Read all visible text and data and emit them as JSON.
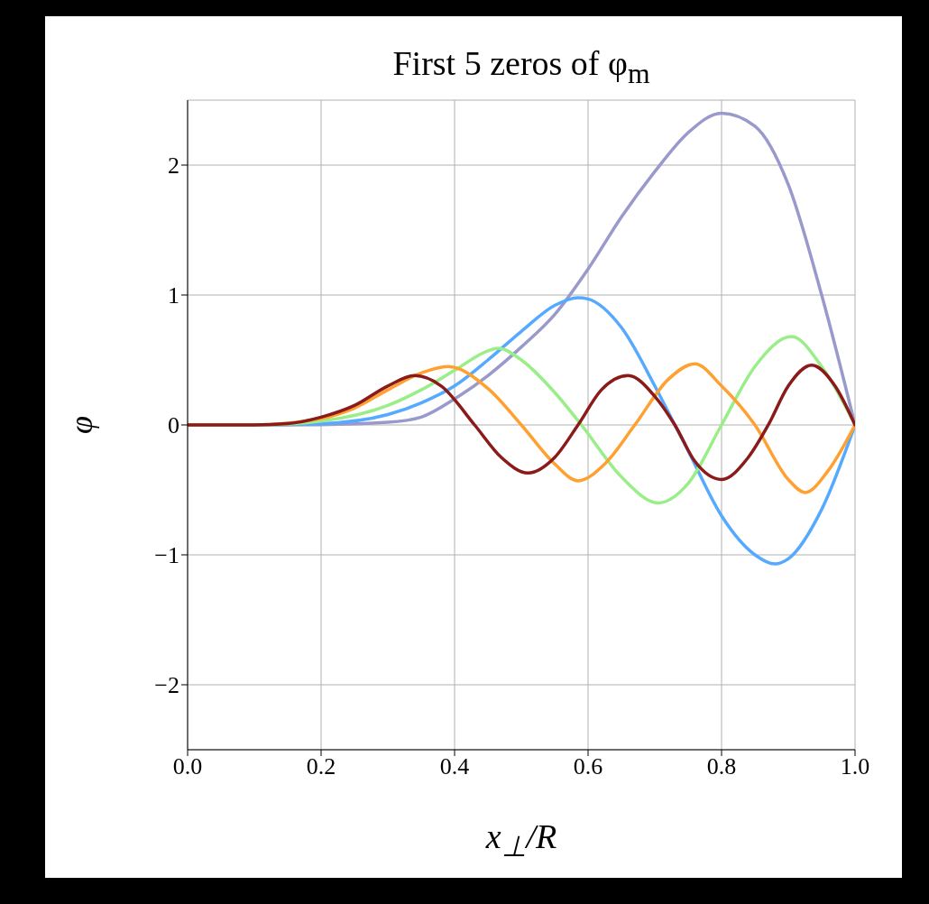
{
  "chart_data": {
    "type": "line",
    "title": "First 5 zeros of φ$_{m}$",
    "xlabel": "x$_{⊥}$/R",
    "ylabel": "φ",
    "xlim": [
      0,
      1
    ],
    "xticks": [
      {
        "value": 0,
        "label": "0.0"
      },
      {
        "value": 0.2,
        "label": "0.2"
      },
      {
        "value": 0.4,
        "label": "0.4"
      },
      {
        "value": 0.6,
        "label": "0.6"
      },
      {
        "value": 0.8,
        "label": "0.8"
      },
      {
        "value": 1,
        "label": "1.0"
      }
    ],
    "ylim": [
      -2.5,
      2.5
    ],
    "yticks": [
      {
        "value": -2,
        "label": "−2"
      },
      {
        "value": -1,
        "label": "−1"
      },
      0,
      1,
      2
    ],
    "grid": true,
    "legend": false,
    "marker": "none",
    "line_style": "solid",
    "series": [
      {
        "color": "#9999cc",
        "x": [
          0,
          0.1,
          0.2,
          0.3,
          0.35,
          0.4,
          0.45,
          0.5,
          0.55,
          0.6,
          0.65,
          0.7,
          0.75,
          0.8,
          0.85,
          0.9,
          0.95,
          1
        ],
        "values": [
          0,
          0,
          0.002,
          0.02,
          0.06,
          0.2,
          0.38,
          0.6,
          0.85,
          1.2,
          1.6,
          1.95,
          2.25,
          2.4,
          2.3,
          1.85,
          1.0,
          0
        ]
      },
      {
        "color": "#55aaff",
        "x": [
          0,
          0.1,
          0.2,
          0.3,
          0.35,
          0.4,
          0.45,
          0.5,
          0.55,
          0.585,
          0.6,
          0.65,
          0.7,
          0.73,
          0.75,
          0.8,
          0.85,
          0.88,
          0.9,
          0.95,
          1
        ],
        "values": [
          0,
          0,
          0.01,
          0.08,
          0.17,
          0.3,
          0.5,
          0.72,
          0.92,
          0.98,
          0.97,
          0.75,
          0.3,
          0,
          -0.2,
          -0.7,
          -1.0,
          -1.07,
          -1.03,
          -0.65,
          0
        ]
      },
      {
        "color": "#99ee88",
        "x": [
          0,
          0.1,
          0.2,
          0.3,
          0.35,
          0.4,
          0.45,
          0.465,
          0.5,
          0.55,
          0.59,
          0.65,
          0.705,
          0.75,
          0.8,
          0.85,
          0.905,
          0.95,
          1
        ],
        "values": [
          0,
          0,
          0.03,
          0.15,
          0.27,
          0.42,
          0.57,
          0.59,
          0.5,
          0.25,
          0,
          -0.4,
          -0.6,
          -0.45,
          0,
          0.45,
          0.68,
          0.45,
          0
        ]
      },
      {
        "color": "#ffa030",
        "x": [
          0,
          0.1,
          0.2,
          0.25,
          0.3,
          0.35,
          0.39,
          0.45,
          0.5,
          0.55,
          0.585,
          0.625,
          0.67,
          0.72,
          0.76,
          0.8,
          0.85,
          0.9,
          0.925,
          0.96,
          1
        ],
        "values": [
          0,
          0,
          0.05,
          0.13,
          0.27,
          0.4,
          0.45,
          0.28,
          0,
          -0.3,
          -0.43,
          -0.3,
          0,
          0.35,
          0.47,
          0.3,
          0,
          -0.42,
          -0.52,
          -0.35,
          0
        ]
      },
      {
        "color": "#8b1a1a",
        "x": [
          0,
          0.1,
          0.15,
          0.2,
          0.25,
          0.3,
          0.34,
          0.38,
          0.43,
          0.47,
          0.51,
          0.55,
          0.585,
          0.62,
          0.66,
          0.7,
          0.73,
          0.76,
          0.8,
          0.84,
          0.87,
          0.9,
          0.935,
          0.97,
          1
        ],
        "values": [
          0,
          0,
          0.01,
          0.06,
          0.15,
          0.3,
          0.38,
          0.3,
          0,
          -0.25,
          -0.37,
          -0.25,
          0,
          0.27,
          0.38,
          0.22,
          0,
          -0.28,
          -0.42,
          -0.25,
          0,
          0.3,
          0.46,
          0.3,
          0
        ]
      }
    ]
  }
}
